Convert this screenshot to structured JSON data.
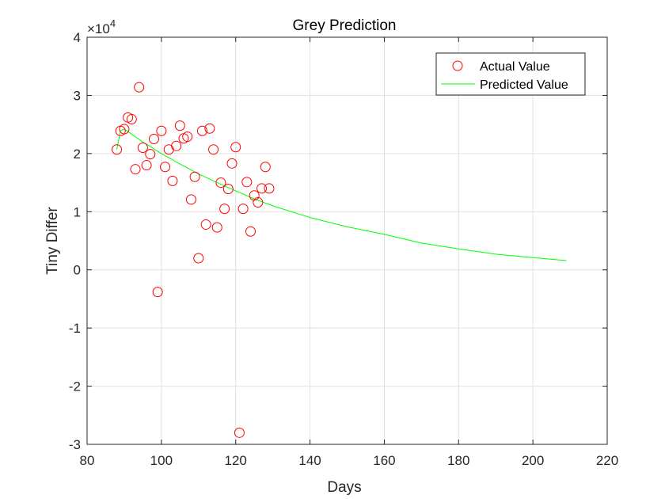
{
  "chart_data": {
    "type": "scatter",
    "title": "Grey Prediction",
    "xlabel": "Days",
    "ylabel": "Tiny Differ",
    "y_multiplier": "×10",
    "y_exponent": "4",
    "xlim": [
      80,
      220
    ],
    "ylim": [
      -3,
      4
    ],
    "xticks": [
      "80",
      "100",
      "120",
      "140",
      "160",
      "180",
      "200",
      "220"
    ],
    "yticks": [
      "-3",
      "-2",
      "-1",
      "0",
      "1",
      "2",
      "3",
      "4"
    ],
    "grid": true,
    "legend_position": "top-right",
    "colors": {
      "actual": "#ff0000",
      "predicted": "#00ff00",
      "grid": "#e0e0e0",
      "axis": "#262626"
    },
    "series": [
      {
        "name": "Actual Value",
        "style": "circle-markers",
        "x": [
          88,
          89,
          90,
          91,
          92,
          93,
          94,
          95,
          96,
          97,
          98,
          99,
          100,
          101,
          102,
          103,
          104,
          105,
          106,
          107,
          108,
          109,
          110,
          111,
          112,
          113,
          114,
          115,
          116,
          117,
          118,
          119,
          120,
          121,
          122,
          123,
          124,
          125,
          126,
          127,
          128,
          129
        ],
        "y": [
          2.07,
          2.39,
          2.42,
          2.62,
          2.59,
          1.73,
          3.14,
          2.1,
          1.8,
          1.99,
          2.25,
          -0.38,
          2.39,
          1.77,
          2.07,
          1.53,
          2.13,
          2.48,
          2.26,
          2.29,
          1.21,
          1.6,
          0.2,
          2.39,
          0.78,
          2.43,
          2.07,
          0.73,
          1.5,
          1.05,
          1.39,
          1.83,
          2.11,
          -2.8,
          1.05,
          1.51,
          0.66,
          1.28,
          1.16,
          1.4,
          1.77,
          1.4
        ]
      },
      {
        "name": "Predicted Value",
        "style": "line",
        "x": [
          88,
          89,
          90,
          95,
          100,
          105,
          110,
          115,
          120,
          125,
          130,
          140,
          150,
          160,
          170,
          180,
          190,
          200,
          209
        ],
        "y": [
          2.07,
          2.39,
          2.42,
          2.2,
          2.0,
          1.82,
          1.65,
          1.5,
          1.36,
          1.22,
          1.1,
          0.9,
          0.74,
          0.61,
          0.46,
          0.36,
          0.27,
          0.21,
          0.16
        ]
      }
    ]
  }
}
